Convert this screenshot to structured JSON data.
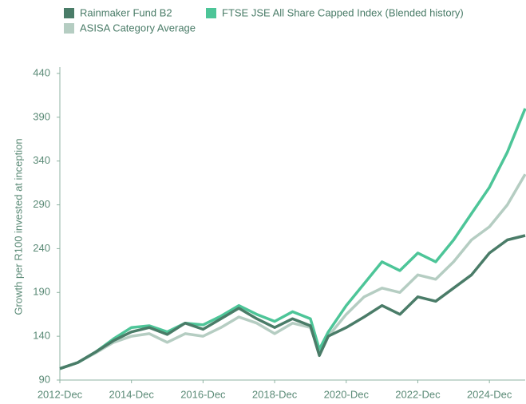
{
  "chart_data": {
    "type": "line",
    "y_label": "Growth per R100 invested at inception",
    "x": [
      "2012-Dec",
      "2013-Jun",
      "2013-Dec",
      "2014-Jun",
      "2014-Dec",
      "2015-Jun",
      "2015-Dec",
      "2016-Jun",
      "2016-Dec",
      "2017-Jun",
      "2017-Dec",
      "2018-Jun",
      "2018-Dec",
      "2019-Jun",
      "2019-Dec",
      "2020-Mar",
      "2020-Jun",
      "2020-Dec",
      "2021-Jun",
      "2021-Dec",
      "2022-Jun",
      "2022-Dec",
      "2023-Jun",
      "2023-Dec",
      "2024-Jun",
      "2024-Dec",
      "2025-Jun",
      "2025-Dec"
    ],
    "series": [
      {
        "name": "Rainmaker Fund B2",
        "color": "#4a7c68",
        "values": [
          103,
          110,
          122,
          135,
          145,
          150,
          142,
          155,
          148,
          160,
          172,
          160,
          150,
          160,
          152,
          118,
          140,
          150,
          162,
          175,
          165,
          185,
          180,
          195,
          210,
          235,
          250,
          255
        ]
      },
      {
        "name": "FTSE JSE All Share Capped Index (Blended history)",
        "color": "#4dc598",
        "values": [
          103,
          110,
          122,
          137,
          150,
          152,
          145,
          155,
          153,
          163,
          175,
          165,
          157,
          168,
          160,
          125,
          145,
          175,
          200,
          225,
          215,
          235,
          225,
          250,
          280,
          310,
          350,
          400
        ]
      },
      {
        "name": "ASISA Category Average",
        "color": "#b5cdc2",
        "values": [
          103,
          110,
          121,
          133,
          140,
          143,
          133,
          143,
          140,
          150,
          162,
          155,
          143,
          155,
          150,
          122,
          140,
          165,
          185,
          195,
          190,
          210,
          205,
          225,
          250,
          265,
          290,
          325
        ]
      }
    ],
    "xlim": [
      "2012-Dec",
      "2025-Dec"
    ],
    "xticks": [
      "2012-Dec",
      "2014-Dec",
      "2016-Dec",
      "2018-Dec",
      "2020-Dec",
      "2022-Dec",
      "2024-Dec"
    ],
    "ylim": [
      90,
      440
    ],
    "yticks": [
      90,
      140,
      190,
      240,
      290,
      340,
      390,
      440
    ],
    "legend": "top-left"
  }
}
